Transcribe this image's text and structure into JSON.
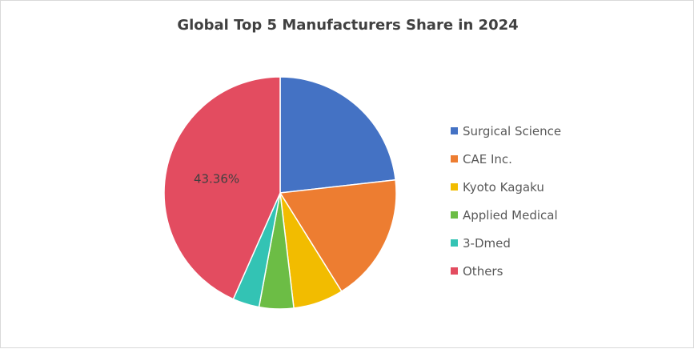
{
  "chart_data": {
    "type": "pie",
    "title": "Global Top 5 Manufacturers Share in 2024",
    "categories": [
      "Surgical Science",
      "CAE Inc.",
      "Kyoto Kagaku",
      "Applied Medical",
      "3-Dmed",
      "Others"
    ],
    "values": [
      23.2,
      17.9,
      7.0,
      4.8,
      3.7,
      43.36
    ],
    "colors": [
      "#4472c4",
      "#ed7d31",
      "#f2bc00",
      "#6cbd45",
      "#33c3b4",
      "#e34c60"
    ],
    "data_labels": [
      {
        "category": "Others",
        "text": "43.36%"
      }
    ],
    "legend_position": "right"
  }
}
